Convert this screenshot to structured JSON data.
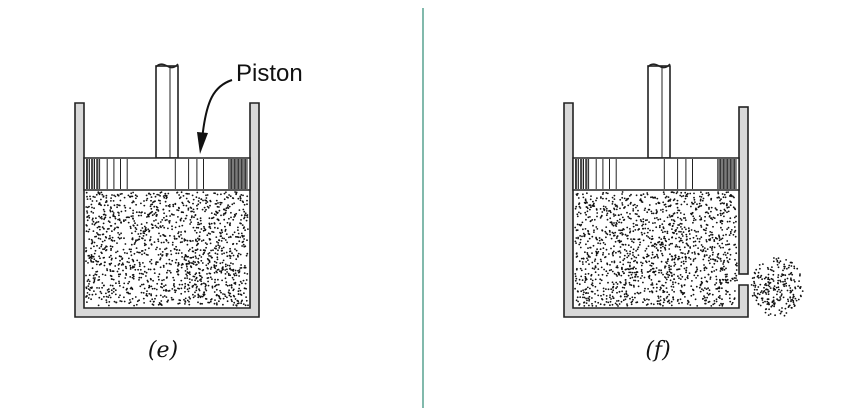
{
  "figures": [
    {
      "id": "e",
      "caption": "(e)",
      "has_leak": false
    },
    {
      "id": "f",
      "caption": "(f)",
      "has_leak": true
    }
  ],
  "piston_label": "Piston",
  "colors": {
    "wall_fill": "#d9d9d9",
    "wall_stroke": "#222222",
    "divider": "#2e8b74",
    "dots": "#111111",
    "background": "#ffffff"
  }
}
